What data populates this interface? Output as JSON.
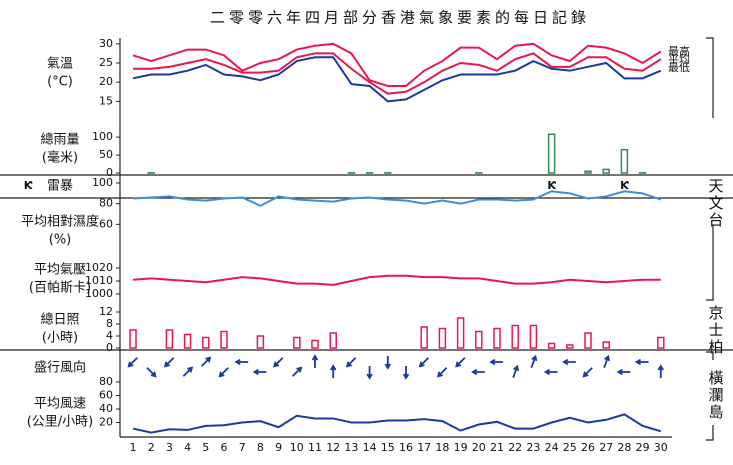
{
  "title": "二零零六年四月部分香港氣象要素的每日記錄",
  "days": [
    1,
    2,
    3,
    4,
    5,
    6,
    7,
    8,
    9,
    10,
    11,
    12,
    13,
    14,
    15,
    16,
    17,
    18,
    19,
    20,
    21,
    22,
    23,
    24,
    25,
    26,
    27,
    28,
    29,
    30
  ],
  "stations": [
    "天文台",
    "京士柏",
    "橫瀾島"
  ],
  "chart_data": [
    {
      "type": "line",
      "label": [
        "氣溫",
        "(°C)"
      ],
      "ylim": [
        13,
        31
      ],
      "yticks": [
        15,
        20,
        25,
        30
      ],
      "series": [
        {
          "name": "最高",
          "color": "#e8174f",
          "values": [
            27,
            25.5,
            27,
            28.5,
            28.5,
            27,
            23,
            25,
            26,
            28.5,
            29.5,
            30,
            27.5,
            20.5,
            19,
            19,
            23,
            25.5,
            29,
            29,
            26,
            29.5,
            30,
            27,
            25.5,
            29.5,
            29,
            27.5,
            25,
            28
          ]
        },
        {
          "name": "平均",
          "color": "#e8174f",
          "values": [
            23.5,
            23.5,
            24,
            25,
            26,
            24.5,
            22.5,
            22.5,
            23,
            26.5,
            27.5,
            27.5,
            23.5,
            20,
            17,
            17.5,
            20,
            23,
            25,
            24.5,
            23,
            26,
            27.5,
            24,
            24,
            26.5,
            26.5,
            23.5,
            23,
            26
          ]
        },
        {
          "name": "最低",
          "color": "#1a3a9c",
          "values": [
            21,
            22,
            22,
            23,
            24.5,
            22,
            21.5,
            20.5,
            22,
            25.5,
            26.5,
            26.5,
            19.5,
            19,
            15,
            15.5,
            18,
            20.5,
            22,
            22,
            22,
            23,
            25.5,
            23.5,
            23,
            24,
            25,
            21,
            21,
            23
          ]
        }
      ]
    },
    {
      "type": "bar",
      "label": [
        "總雨量",
        "(毫米)"
      ],
      "ylim": [
        0,
        120
      ],
      "yticks": [
        0,
        50,
        100
      ],
      "color": "#2e8b57",
      "values": [
        0,
        0.5,
        0,
        0,
        0,
        0,
        0,
        0,
        0,
        0,
        0,
        0,
        0.5,
        0.5,
        0.5,
        0,
        0,
        0,
        0,
        0.5,
        0,
        0,
        0,
        108,
        0,
        5,
        10,
        65,
        0.5,
        0
      ]
    },
    {
      "type": "marker",
      "label": [
        "雷暴"
      ],
      "symbol": "Ƙ",
      "color": "#000000",
      "days": [
        24,
        28
      ]
    },
    {
      "type": "line",
      "label": [
        "平均相對濕度",
        "(%)"
      ],
      "ylim": [
        40,
        100
      ],
      "yticks": [
        60,
        80,
        100
      ],
      "series": [
        {
          "color": "#3a8fd8",
          "values": [
            85,
            86,
            87,
            84,
            83,
            85,
            86,
            78,
            87,
            84,
            83,
            82,
            85,
            86,
            84,
            83,
            80,
            83,
            80,
            84,
            84,
            83,
            84,
            92,
            90,
            85,
            87,
            92,
            90,
            84
          ]
        }
      ]
    },
    {
      "type": "line",
      "label": [
        "平均氣壓",
        "(百帕斯卡)"
      ],
      "ylim": [
        990,
        1025
      ],
      "yticks": [
        1000,
        1010,
        1020
      ],
      "series": [
        {
          "color": "#e8174f",
          "values": [
            1011,
            1012,
            1011,
            1010,
            1009,
            1011,
            1013,
            1012,
            1010,
            1008,
            1008,
            1007,
            1010,
            1013,
            1014,
            1014,
            1013,
            1013,
            1012,
            1012,
            1010,
            1008,
            1008,
            1009,
            1011,
            1010,
            1009,
            1010,
            1011,
            1011
          ]
        }
      ]
    },
    {
      "type": "bar",
      "label": [
        "總日照",
        "(小時)"
      ],
      "ylim": [
        0,
        14
      ],
      "yticks": [
        0,
        4,
        8,
        12
      ],
      "color": "#e8174f",
      "values": [
        6,
        0,
        6,
        4.5,
        3.5,
        5.5,
        0,
        4,
        0,
        3.5,
        2.5,
        5,
        0,
        0,
        0,
        0,
        7,
        6.5,
        10,
        5.5,
        6.5,
        7.5,
        7.5,
        1.5,
        1,
        5,
        2,
        0,
        0,
        3.5
      ]
    },
    {
      "type": "arrow",
      "label": [
        "盛行風向"
      ],
      "color": "#1a3a9c",
      "values": [
        45,
        315,
        45,
        225,
        225,
        45,
        90,
        90,
        45,
        225,
        180,
        180,
        45,
        0,
        0,
        0,
        45,
        45,
        45,
        90,
        90,
        200,
        200,
        90,
        90,
        45,
        200,
        90,
        90,
        180
      ]
    },
    {
      "type": "line",
      "label": [
        "平均風速",
        "(公里/小時)"
      ],
      "ylim": [
        0,
        80
      ],
      "yticks": [
        20,
        40,
        60,
        80
      ],
      "series": [
        {
          "color": "#1a3a9c",
          "values": [
            11,
            5,
            10,
            9,
            15,
            16,
            20,
            22,
            13,
            30,
            26,
            26,
            20,
            20,
            23,
            23,
            25,
            22,
            8,
            17,
            21,
            11,
            11,
            20,
            27,
            20,
            24,
            32,
            15,
            7
          ]
        }
      ]
    }
  ]
}
